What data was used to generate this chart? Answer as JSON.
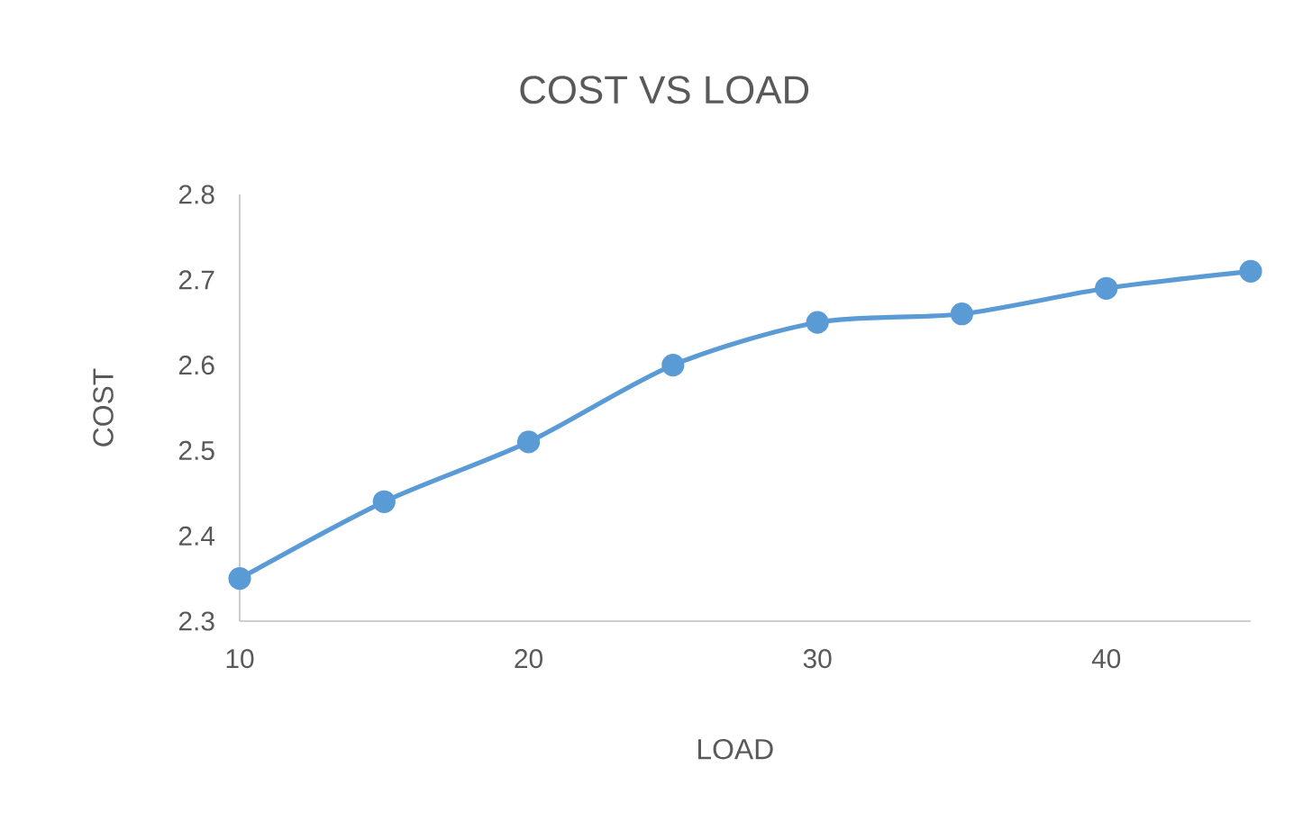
{
  "chart_data": {
    "type": "line",
    "title": "COST VS  LOAD",
    "xlabel": "LOAD",
    "ylabel": "COST",
    "x": [
      10,
      15,
      20,
      25,
      30,
      35,
      40,
      45
    ],
    "series": [
      {
        "color": "#5b9bd5",
        "values": [
          2.35,
          2.44,
          2.51,
          2.6,
          2.65,
          2.66,
          2.69,
          2.71
        ]
      }
    ],
    "xlim": [
      10,
      45
    ],
    "xticks": [
      10,
      20,
      30,
      40
    ],
    "ylim": [
      2.3,
      2.8
    ],
    "yticks": [
      2.3,
      2.4,
      2.5,
      2.6,
      2.7,
      2.8
    ],
    "marker": "circle",
    "line_style": "solid",
    "grid": false
  }
}
